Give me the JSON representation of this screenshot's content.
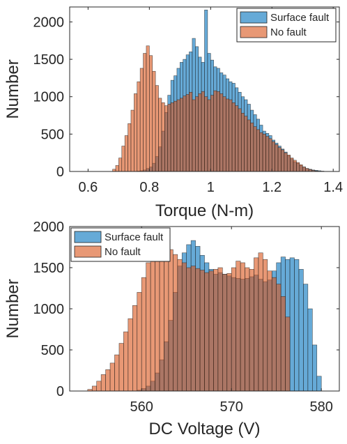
{
  "chart_data": [
    {
      "type": "bar",
      "subtype": "overlaid-histogram",
      "xlabel": "Torque (N-m)",
      "ylabel": "Number",
      "xlim": [
        0.54,
        1.42
      ],
      "ylim": [
        0,
        2200
      ],
      "xticks": [
        0.6,
        0.8,
        1.0,
        1.2,
        1.4
      ],
      "xtick_labels": [
        "0.6",
        "0.8",
        "1",
        "1.2",
        "1.4"
      ],
      "yticks": [
        0,
        500,
        1000,
        1500,
        2000
      ],
      "ytick_labels": [
        "0",
        "500",
        "1000",
        "1500",
        "2000"
      ],
      "legend_position": "top-right",
      "series": [
        {
          "name": "Surface fault",
          "color": "#0072BD",
          "bin_start": 0.6,
          "bin_width": 0.01,
          "values": [
            0,
            0,
            0,
            0,
            0,
            0,
            0,
            0,
            0,
            0,
            0,
            0,
            0,
            0,
            0,
            0,
            5,
            10,
            20,
            40,
            60,
            110,
            200,
            330,
            540,
            790,
            1020,
            1220,
            1280,
            1380,
            1460,
            1500,
            1560,
            1600,
            1780,
            1670,
            1530,
            1460,
            2160,
            1580,
            1490,
            1400,
            1380,
            1320,
            1290,
            1240,
            1200,
            1180,
            1120,
            1060,
            1000,
            960,
            900,
            820,
            760,
            700,
            620,
            540,
            510,
            480,
            420,
            380,
            340,
            300,
            260,
            210,
            170,
            130,
            110,
            80,
            60,
            40,
            30,
            20,
            15,
            10,
            5,
            0
          ]
        },
        {
          "name": "No fault",
          "color": "#D95319",
          "bin_start": 0.6,
          "bin_width": 0.01,
          "values": [
            0,
            0,
            0,
            0,
            0,
            0,
            0,
            0,
            30,
            80,
            180,
            340,
            480,
            640,
            820,
            1040,
            1200,
            1380,
            1580,
            1680,
            1550,
            1340,
            1150,
            980,
            920,
            880,
            900,
            920,
            940,
            960,
            980,
            1010,
            1030,
            1060,
            960,
            1000,
            1040,
            1070,
            1000,
            960,
            1020,
            1080,
            1070,
            1040,
            1000,
            970,
            960,
            920,
            880,
            840,
            780,
            740,
            690,
            650,
            600,
            560,
            520,
            500,
            470,
            440,
            400,
            360,
            320,
            290,
            250,
            220,
            180,
            150,
            120,
            90,
            60,
            40,
            25,
            15,
            8,
            3,
            0,
            0
          ]
        }
      ]
    },
    {
      "type": "bar",
      "subtype": "overlaid-histogram",
      "xlabel": "DC Voltage (V)",
      "ylabel": "Number",
      "xlim": [
        552,
        582
      ],
      "ylim": [
        0,
        2000
      ],
      "xticks": [
        560,
        570,
        580
      ],
      "xtick_labels": [
        "560",
        "570",
        "580"
      ],
      "yticks": [
        0,
        500,
        1000,
        1500,
        2000
      ],
      "ytick_labels": [
        "0",
        "500",
        "1000",
        "1500",
        "2000"
      ],
      "legend_position": "top-left",
      "series": [
        {
          "name": "Surface fault",
          "color": "#0072BD",
          "bin_start": 554,
          "bin_width": 0.5,
          "values": [
            0,
            0,
            0,
            0,
            0,
            0,
            0,
            0,
            0,
            0,
            0,
            10,
            30,
            60,
            120,
            220,
            380,
            600,
            860,
            1200,
            1520,
            1680,
            1780,
            1830,
            1760,
            1650,
            1560,
            1480,
            1420,
            1440,
            1420,
            1400,
            1380,
            1370,
            1360,
            1370,
            1390,
            1410,
            1360,
            1330,
            1350,
            1460,
            1560,
            1630,
            1600,
            1620,
            1600,
            1480,
            1300,
            1000,
            560,
            180,
            0
          ]
        },
        {
          "name": "No fault",
          "color": "#D95319",
          "bin_start": 554,
          "bin_width": 0.5,
          "values": [
            20,
            60,
            120,
            200,
            260,
            340,
            440,
            580,
            720,
            880,
            1040,
            1200,
            1380,
            1560,
            1660,
            1740,
            1780,
            1700,
            1720,
            1660,
            1600,
            1560,
            1500,
            1520,
            1490,
            1470,
            1440,
            1460,
            1480,
            1500,
            1420,
            1430,
            1500,
            1580,
            1560,
            1500,
            1480,
            1620,
            1680,
            1600,
            1460,
            1380,
            1300,
            1150,
            900,
            0,
            0,
            0,
            0,
            0,
            0,
            0,
            0
          ]
        }
      ]
    }
  ]
}
